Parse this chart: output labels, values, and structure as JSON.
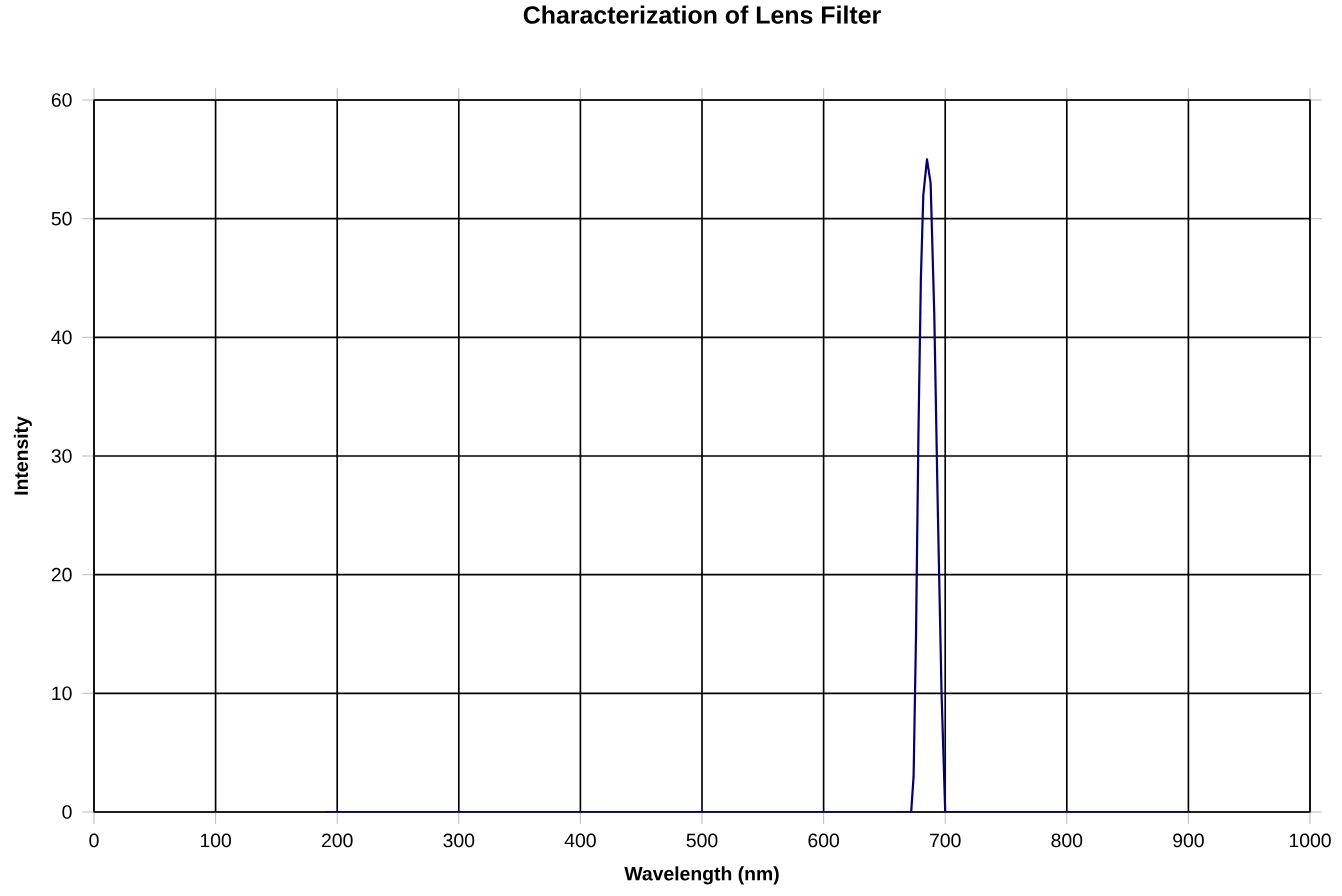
{
  "chart_data": {
    "type": "line",
    "title": "Characterization of Lens Filter",
    "xlabel": "Wavelength (nm)",
    "ylabel": "Intensity",
    "x": [
      190,
      300,
      400,
      500,
      600,
      660,
      672,
      674,
      676,
      678,
      680,
      682,
      685,
      688,
      691,
      694,
      697,
      700,
      750,
      800,
      900
    ],
    "series": [
      {
        "color": "#000080",
        "values": [
          0,
          0,
          0,
          0,
          0,
          0,
          0,
          3,
          15,
          32,
          45,
          52,
          55,
          53,
          42,
          25,
          10,
          0,
          0,
          0,
          0
        ]
      }
    ],
    "xlim": [
      0,
      1000
    ],
    "xticks": [
      0,
      100,
      200,
      300,
      400,
      500,
      600,
      700,
      800,
      900,
      1000
    ],
    "ylim": [
      0,
      60
    ],
    "yticks": [
      0,
      10,
      20,
      30,
      40,
      50,
      60
    ],
    "grid": true,
    "marker": "none",
    "line_style": "solid"
  }
}
